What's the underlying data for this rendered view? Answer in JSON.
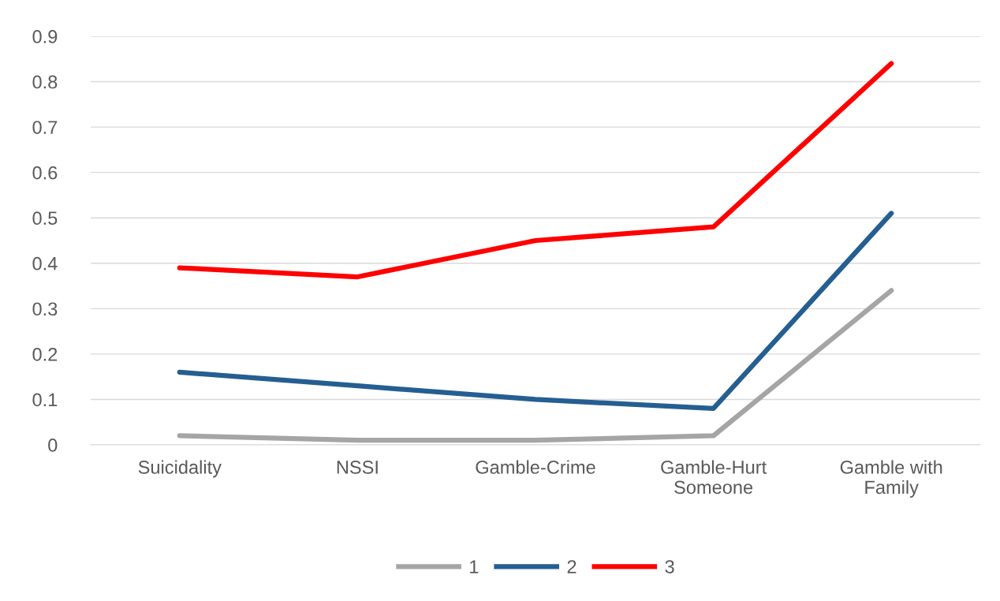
{
  "chart_data": {
    "type": "line",
    "categories": [
      "Suicidality",
      "NSSI",
      "Gamble-Crime",
      "Gamble-Hurt\nSomeone",
      "Gamble with\nFamily"
    ],
    "series": [
      {
        "name": "1",
        "color": "#a5a5a5",
        "values": [
          0.02,
          0.01,
          0.01,
          0.02,
          0.34
        ]
      },
      {
        "name": "2",
        "color": "#255e91",
        "values": [
          0.16,
          0.13,
          0.1,
          0.08,
          0.51
        ]
      },
      {
        "name": "3",
        "color": "#ff0000",
        "values": [
          0.39,
          0.37,
          0.45,
          0.48,
          0.84
        ]
      }
    ],
    "ylim": [
      0,
      0.9
    ],
    "yticks": [
      {
        "value": 0,
        "label": "0"
      },
      0.1,
      0.2,
      0.3,
      0.4,
      0.5,
      0.6,
      0.7,
      0.8,
      0.9
    ],
    "grid": "y",
    "legend": "bottom",
    "marker": "none",
    "line_style": "solid"
  }
}
